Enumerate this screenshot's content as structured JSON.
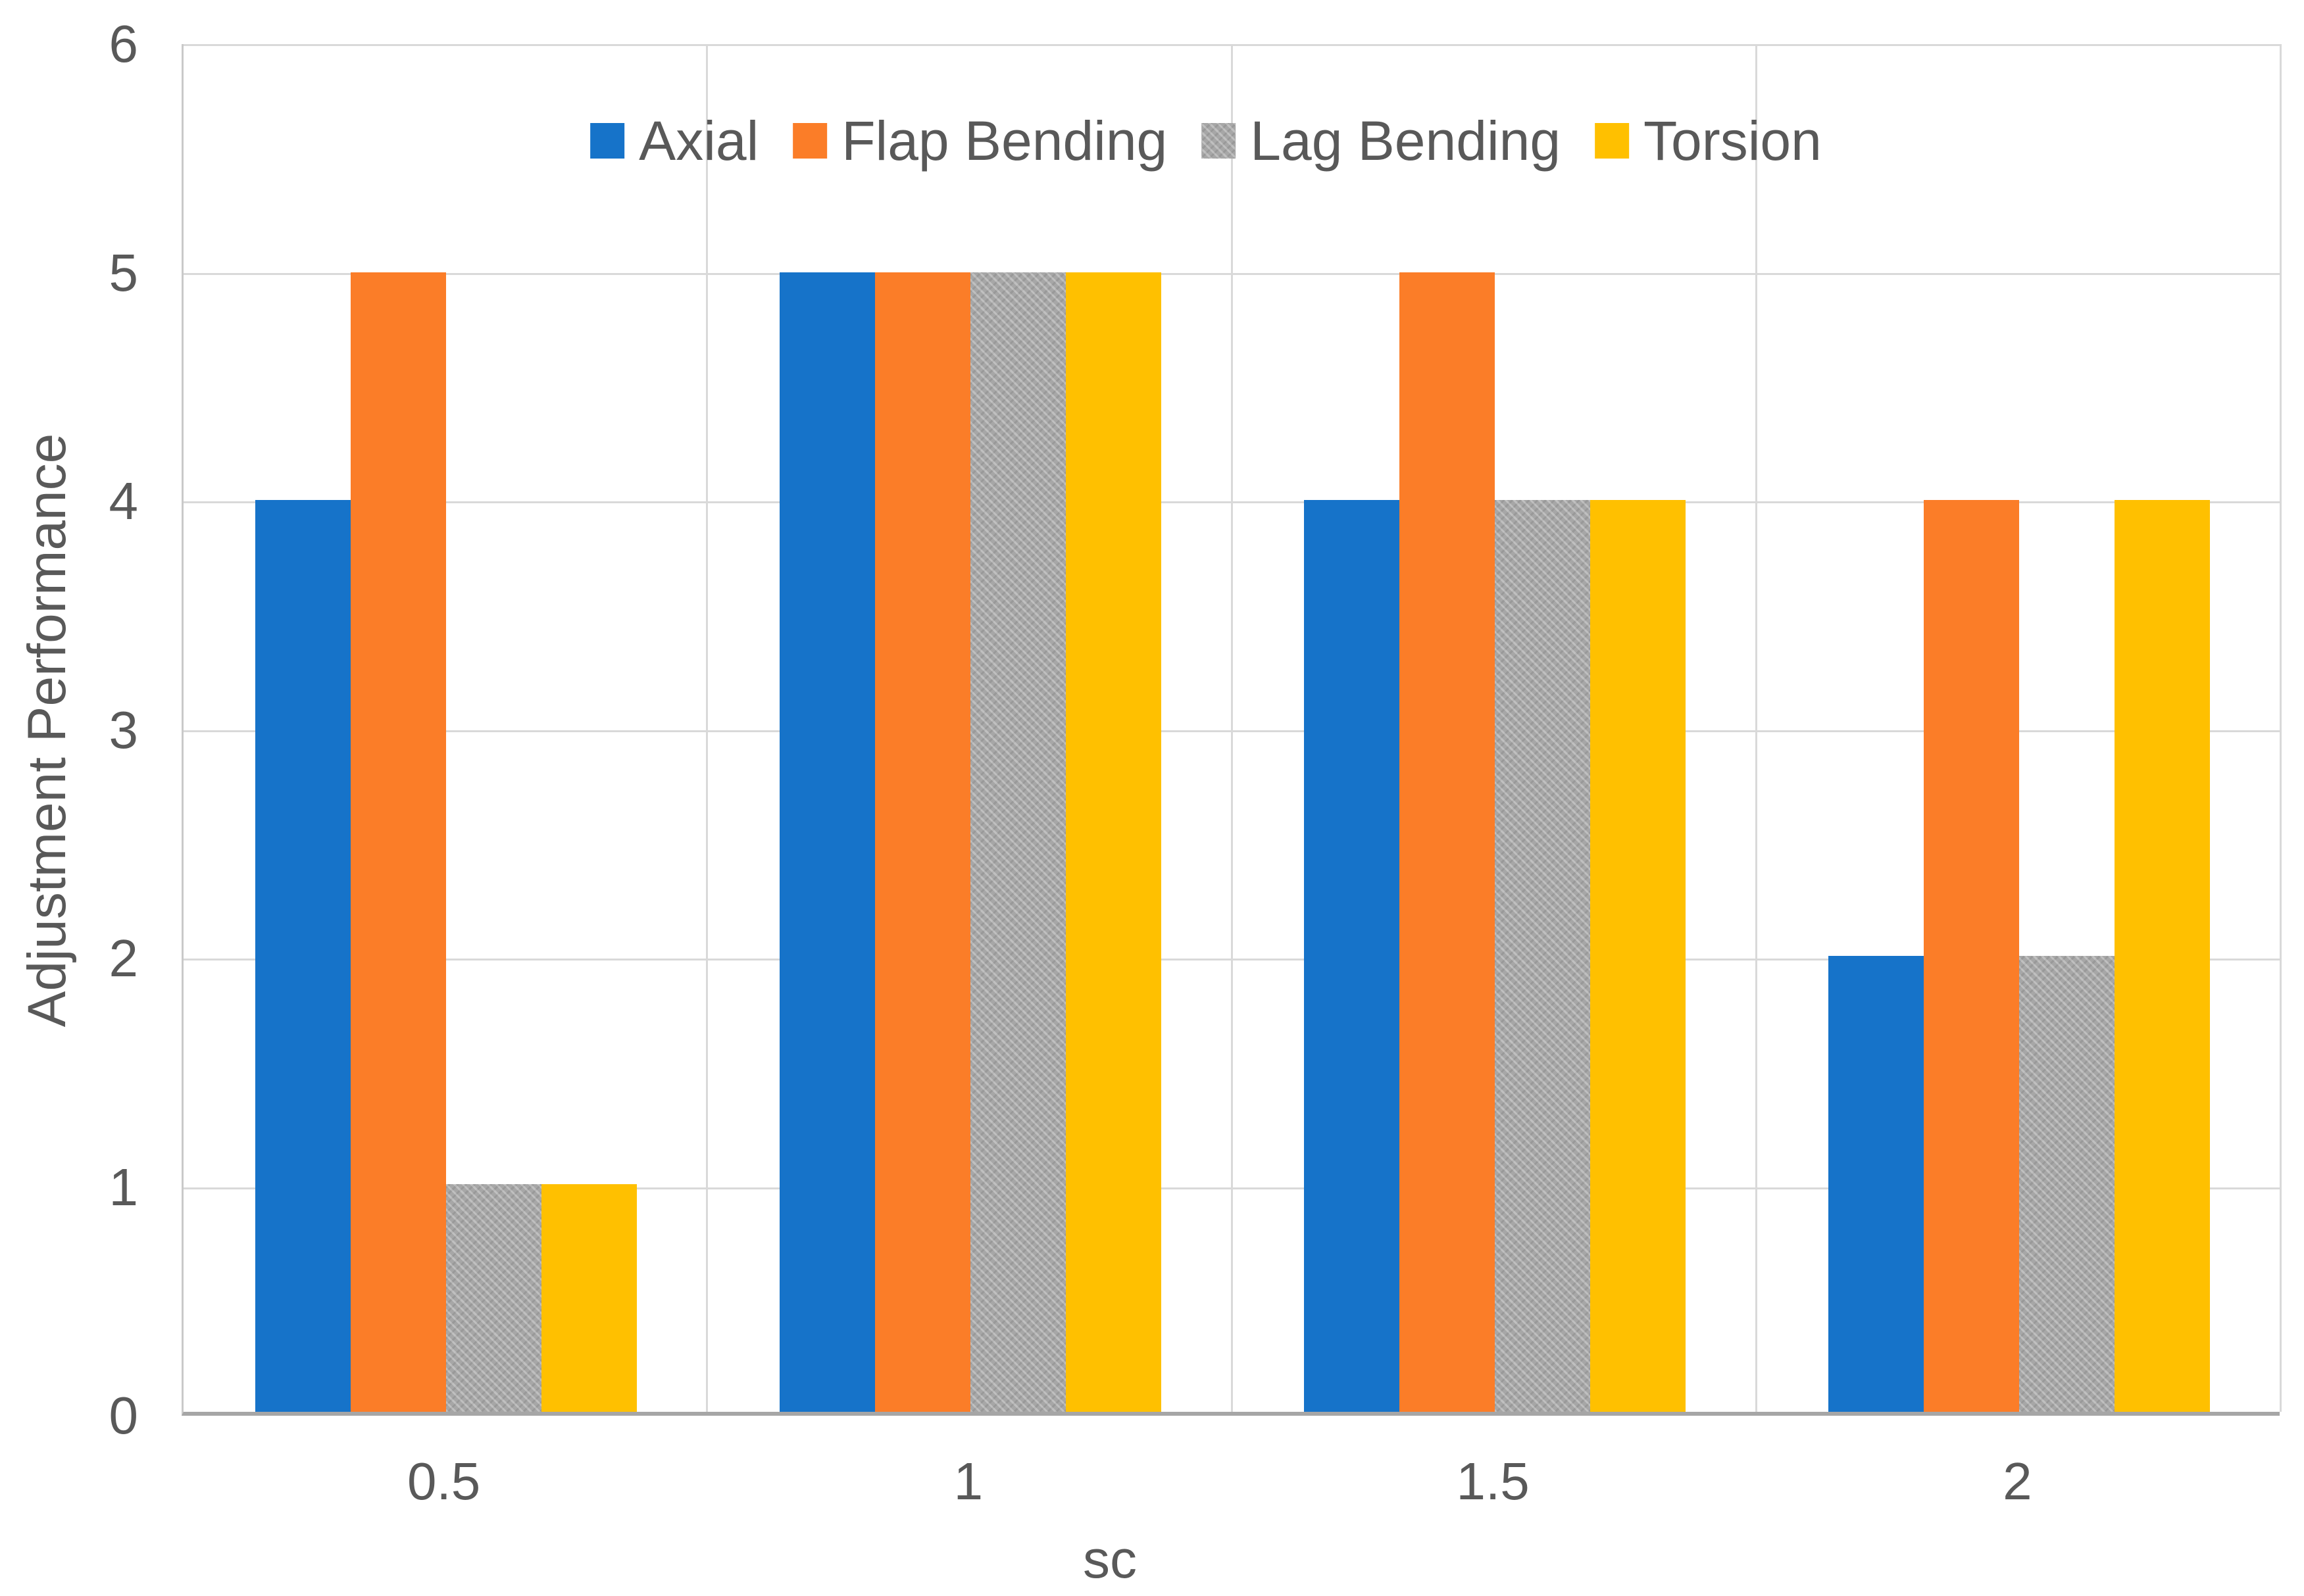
{
  "chart_data": {
    "type": "bar",
    "title": "",
    "xlabel": "sc",
    "ylabel": "Adjustment Performance",
    "categories": [
      "0.5",
      "1",
      "1.5",
      "2"
    ],
    "series": [
      {
        "name": "Axial",
        "color": "#1673C9",
        "pattern": false,
        "values": [
          4,
          5,
          4,
          2
        ]
      },
      {
        "name": "Flap Bending",
        "color": "#FB7D28",
        "pattern": false,
        "values": [
          5,
          5,
          5,
          4
        ]
      },
      {
        "name": "Lag Bending",
        "color": "#A7A7A7",
        "pattern": true,
        "values": [
          1,
          5,
          4,
          2
        ]
      },
      {
        "name": "Torsion",
        "color": "#FFC000",
        "pattern": false,
        "values": [
          1,
          5,
          4,
          4
        ]
      }
    ],
    "ylim": [
      0,
      6
    ],
    "yticks": [
      "0",
      "1",
      "2",
      "3",
      "4",
      "5",
      "6"
    ],
    "grid": true,
    "legend_position": "top-center",
    "colors": {
      "text": "#595959",
      "gridline": "#D9D9D9",
      "axis": "#A6A6A6",
      "background": "#FFFFFF"
    }
  }
}
